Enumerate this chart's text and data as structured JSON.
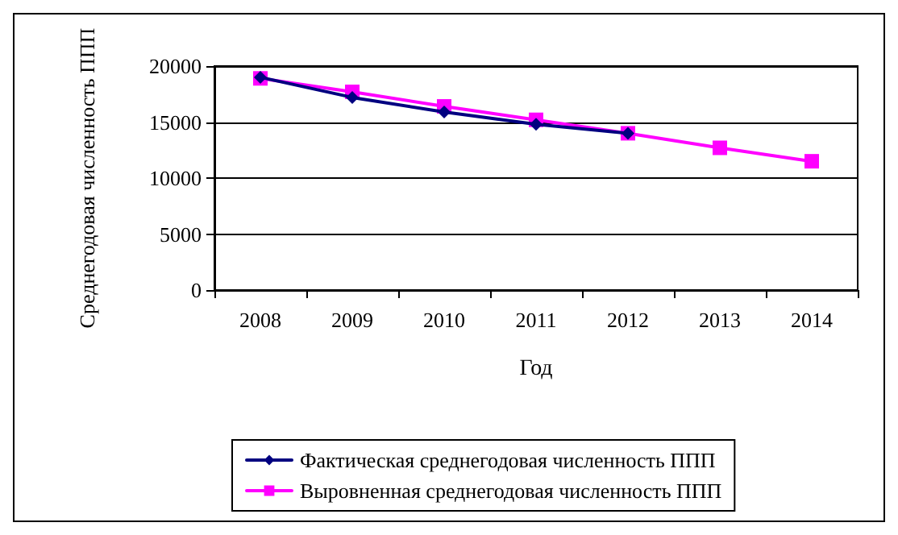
{
  "chart_data": {
    "type": "line",
    "xlabel": "Год",
    "ylabel": "Среднегодовая численность ППП",
    "categories": [
      "2008",
      "2009",
      "2010",
      "2011",
      "2012",
      "2013",
      "2014"
    ],
    "series": [
      {
        "name": "Фактическая среднегодовая численность ППП",
        "color": "#000080",
        "marker": "diamond",
        "values": [
          19000,
          17200,
          15900,
          14800,
          14000,
          null,
          null
        ]
      },
      {
        "name": "Выровненная среднегодовая численность ППП",
        "color": "#ff00ff",
        "marker": "square",
        "values": [
          18900,
          17700,
          16400,
          15200,
          14000,
          12700,
          11500
        ]
      }
    ],
    "ylim": [
      0,
      20000
    ],
    "yticks": [
      0,
      5000,
      10000,
      15000,
      20000
    ],
    "grid": "y",
    "legend": "bottom"
  }
}
